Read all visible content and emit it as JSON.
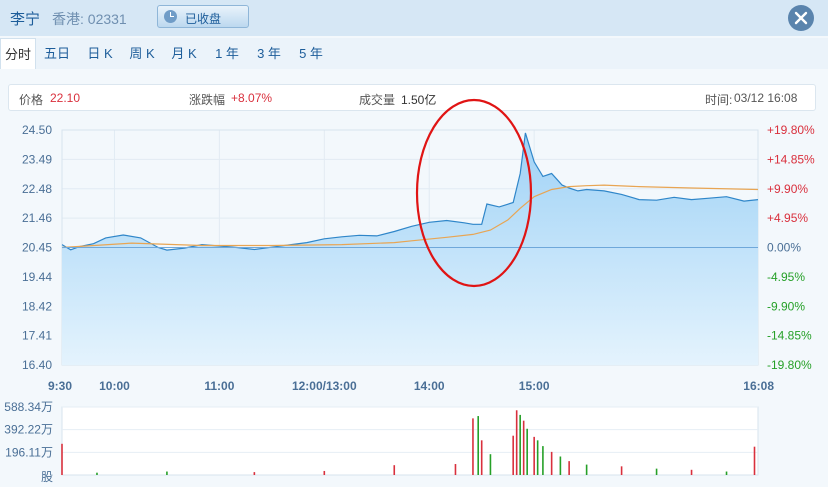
{
  "header": {
    "stock_name": "李宁",
    "market_code": "香港: 02331",
    "status_label": "已收盘",
    "status_icon": "clock-icon",
    "close_icon": "close-icon"
  },
  "tabs": [
    {
      "label": "分时",
      "active": true
    },
    {
      "label": "五日",
      "active": false
    },
    {
      "label": "日 K",
      "active": false
    },
    {
      "label": "周 K",
      "active": false
    },
    {
      "label": "月 K",
      "active": false
    },
    {
      "label": "1 年",
      "active": false
    },
    {
      "label": "3 年",
      "active": false
    },
    {
      "label": "5 年",
      "active": false
    }
  ],
  "info": {
    "price_label": "价格",
    "price_value": "22.10",
    "change_label": "涨跌幅",
    "change_value": "+8.07%",
    "volume_label": "成交量",
    "volume_value": "1.50亿",
    "time_label": "时间:",
    "time_value": "03/12 16:08"
  },
  "colors": {
    "up": "#d9303d",
    "down": "#26a028",
    "price_line": "#2f86c9",
    "price_fill_top": "#9fd2f6",
    "price_fill_bottom": "#e4f3fd",
    "avg_line": "#e8a553",
    "axis_text": "#4a6f96",
    "annotation": "#e01414"
  },
  "chart_data": [
    {
      "type": "line",
      "title": "",
      "x_ticks": [
        "9:30",
        "10:00",
        "11:00",
        "12:00/13:00",
        "14:00",
        "15:00",
        "16:08"
      ],
      "y_ticks": [
        "24.50",
        "23.49",
        "22.48",
        "21.46",
        "20.45",
        "19.44",
        "18.42",
        "17.41",
        "16.40"
      ],
      "pct_ticks": [
        "+19.80%",
        "+14.85%",
        "+9.90%",
        "+4.95%",
        "0.00%",
        "-4.95%",
        "-9.90%",
        "-14.85%",
        "-19.80%"
      ],
      "ylim": [
        16.4,
        24.5
      ],
      "prev_close": 20.45,
      "x_range_minutes": [
        0,
        398
      ],
      "series": [
        {
          "x": [
            0,
            5,
            10,
            18,
            25,
            35,
            45,
            55,
            60,
            70,
            80,
            90,
            100,
            110,
            120,
            130,
            140,
            150,
            160,
            170,
            180,
            190,
            200,
            210,
            220,
            230,
            235,
            240,
            243,
            250,
            258,
            262,
            265,
            270,
            275,
            280,
            283,
            286,
            290,
            295,
            300,
            310,
            320,
            330,
            340,
            350,
            360,
            370,
            380,
            390,
            398
          ],
          "y": [
            20.55,
            20.37,
            20.48,
            20.58,
            20.78,
            20.88,
            20.78,
            20.45,
            20.36,
            20.43,
            20.55,
            20.5,
            20.45,
            20.38,
            20.46,
            20.54,
            20.62,
            20.75,
            20.82,
            20.87,
            20.85,
            21.0,
            21.18,
            21.32,
            21.38,
            21.3,
            21.25,
            21.25,
            21.95,
            21.85,
            22.0,
            23.0,
            24.4,
            23.4,
            22.9,
            23.0,
            22.8,
            22.6,
            22.5,
            22.4,
            22.45,
            22.4,
            22.28,
            22.1,
            22.08,
            22.18,
            22.1,
            22.15,
            22.2,
            22.05,
            22.1
          ]
        },
        {
          "x": [
            0,
            40,
            80,
            120,
            160,
            190,
            200,
            220,
            235,
            245,
            255,
            262,
            270,
            280,
            290,
            300,
            310,
            330,
            360,
            398
          ],
          "y": [
            20.45,
            20.6,
            20.52,
            20.52,
            20.55,
            20.62,
            20.68,
            20.8,
            20.9,
            21.05,
            21.4,
            21.8,
            22.2,
            22.45,
            22.55,
            22.58,
            22.6,
            22.55,
            22.5,
            22.45
          ]
        }
      ]
    },
    {
      "type": "bar",
      "title": "",
      "y_ticks": [
        "588.34万",
        "392.22万",
        "196.11万"
      ],
      "ylabel": "股",
      "ylim": [
        0,
        588.34
      ],
      "x_range_minutes": [
        0,
        398
      ],
      "series": [
        {
          "x": [
            0,
            20,
            60,
            110,
            150,
            190,
            225,
            235,
            238,
            240,
            245,
            258,
            260,
            262,
            264,
            266,
            270,
            272,
            275,
            280,
            285,
            290,
            300,
            320,
            340,
            360,
            380,
            396
          ],
          "values": [
            270,
            20,
            30,
            25,
            35,
            85,
            95,
            490,
            510,
            300,
            180,
            340,
            560,
            520,
            470,
            400,
            330,
            300,
            250,
            200,
            160,
            120,
            90,
            75,
            55,
            45,
            30,
            245
          ],
          "direction": [
            "up",
            "down",
            "down",
            "up",
            "up",
            "up",
            "up",
            "up",
            "down",
            "up",
            "down",
            "up",
            "up",
            "down",
            "up",
            "down",
            "up",
            "down",
            "down",
            "up",
            "down",
            "up",
            "down",
            "up",
            "down",
            "up",
            "down",
            "up"
          ]
        }
      ]
    }
  ]
}
